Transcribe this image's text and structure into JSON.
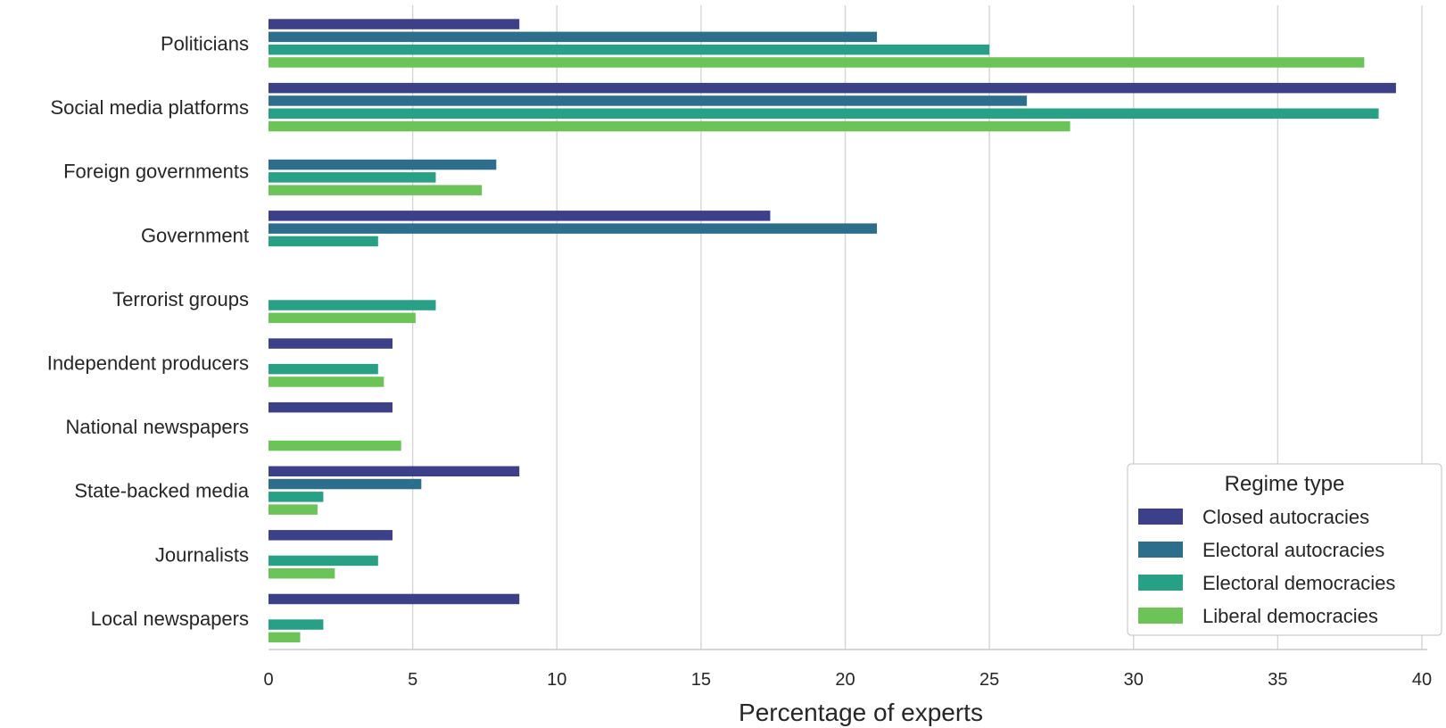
{
  "chart_data": {
    "type": "bar",
    "orientation": "horizontal",
    "categories": [
      "Politicians",
      "Social media platforms",
      "Foreign governments",
      "Government",
      "Terrorist groups",
      "Independent producers",
      "National newspapers",
      "State-backed media",
      "Journalists",
      "Local newspapers"
    ],
    "series": [
      {
        "name": "Closed autocracies",
        "color": "#3b4088",
        "values": [
          8.7,
          39.1,
          0,
          17.4,
          0,
          4.3,
          4.3,
          8.7,
          4.3,
          8.7
        ]
      },
      {
        "name": "Electoral autocracies",
        "color": "#2c6e8c",
        "values": [
          21.1,
          26.3,
          7.9,
          21.1,
          0,
          0,
          0,
          5.3,
          0,
          0
        ]
      },
      {
        "name": "Electoral democracies",
        "color": "#27a085",
        "values": [
          25.0,
          38.5,
          5.8,
          3.8,
          5.8,
          3.8,
          0,
          1.9,
          3.8,
          1.9
        ]
      },
      {
        "name": "Liberal democracies",
        "color": "#6cc358",
        "values": [
          38.0,
          27.8,
          7.4,
          0,
          5.1,
          4.0,
          4.6,
          1.7,
          2.3,
          1.1
        ]
      }
    ],
    "xlabel": "Percentage of experts",
    "ylabel": "",
    "xlim": [
      0,
      40
    ],
    "xticks": [
      "0",
      "5",
      "10",
      "15",
      "20",
      "25",
      "30",
      "35",
      "40"
    ],
    "grid": "vertical",
    "legend": {
      "title": "Regime type",
      "placement": "bottom-right"
    }
  }
}
